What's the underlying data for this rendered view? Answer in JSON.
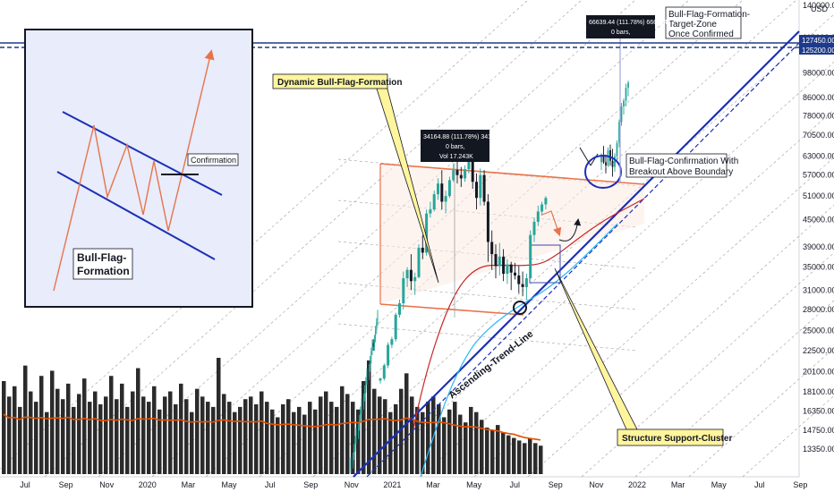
{
  "chart_data": {
    "type": "candlestick",
    "title": "",
    "currency": "USD",
    "y_scale": "log",
    "ylim": [
      12500,
      142000
    ],
    "y_ticks": [
      160000,
      140000,
      118000,
      98000,
      86000,
      78000,
      70500,
      63000,
      57000,
      51000,
      45000,
      39000,
      35000,
      31000,
      28000,
      25000,
      22500,
      20100,
      18100,
      16350,
      14750,
      13350
    ],
    "x_ticks": [
      "Jul",
      "Sep",
      "Nov",
      "2020",
      "Mar",
      "May",
      "Jul",
      "Sep",
      "Nov",
      "2021",
      "Mar",
      "May",
      "Jul",
      "Sep",
      "Nov",
      "2022",
      "Mar",
      "May",
      "Jul",
      "Sep"
    ],
    "highlight_prices": [
      "127450.00",
      "125200.00"
    ],
    "annotations": {
      "dynamic_flag": "Dynamic Bull-Flag-Formation",
      "structure_support": "Structure Support-Cluster",
      "ascending_trend": "Ascending-Trend-Line",
      "confirmation_line1": "Bull-Flag-Confirmation With",
      "confirmation_line2": "Breakout Above Boundary",
      "target_line1": "Bull-Flag-Formation-",
      "target_line2": "Target-Zone",
      "target_line3": "Once Confirmed",
      "tooltip1_line1": "34164.88 (111.78%) 3416488",
      "tooltip1_line2": "0 bars,",
      "tooltip1_line3": "Vol 17.243K",
      "tooltip2_line1": "66639.44 (111.78%) 6663944",
      "tooltip2_line2": "0 bars,"
    },
    "inset": {
      "title_line1": "Bull-Flag-",
      "title_line2": "Formation",
      "confirmation": "Confirmation"
    },
    "colors": {
      "up": "#26a69a",
      "down": "#131722",
      "trend": "#1c2fb5",
      "flag_box": "#e8734a",
      "ma_red": "#c62828",
      "ma_blue": "#29b6f6",
      "volume_ma": "#e65100",
      "callout_fill": "#fff59d",
      "inset_bg": "#e8ecfb",
      "highlight": "#1e3a8a"
    },
    "ohlc": [
      [
        19200,
        19500,
        18900,
        19400
      ],
      [
        19400,
        21000,
        19200,
        20800
      ],
      [
        20800,
        23500,
        20500,
        23200
      ],
      [
        23200,
        24200,
        22800,
        23900
      ],
      [
        23900,
        27500,
        23600,
        27200
      ],
      [
        27200,
        29500,
        26800,
        28900
      ],
      [
        28900,
        34200,
        28000,
        33000
      ],
      [
        33000,
        35000,
        31500,
        34500
      ],
      [
        34500,
        37500,
        31000,
        32500
      ],
      [
        32500,
        34000,
        30200,
        33200
      ],
      [
        33200,
        39500,
        33000,
        38800
      ],
      [
        38800,
        41500,
        36500,
        37800
      ],
      [
        37800,
        47500,
        37200,
        46500
      ],
      [
        46500,
        49500,
        45500,
        47500
      ],
      [
        47500,
        52500,
        47000,
        51500
      ],
      [
        51500,
        56000,
        50000,
        54500
      ],
      [
        54500,
        58500,
        47500,
        49500
      ],
      [
        49500,
        52500,
        46500,
        51000
      ],
      [
        51000,
        56500,
        50500,
        55500
      ],
      [
        55500,
        60500,
        55000,
        58500
      ],
      [
        58500,
        61500,
        54500,
        57000
      ],
      [
        57000,
        59500,
        53500,
        56000
      ],
      [
        56000,
        60000,
        55000,
        58800
      ],
      [
        58800,
        64500,
        57500,
        61500
      ],
      [
        61500,
        63500,
        53000,
        55000
      ],
      [
        55000,
        57500,
        47500,
        50500
      ],
      [
        50500,
        59000,
        48500,
        57000
      ],
      [
        57000,
        58500,
        48500,
        49500
      ],
      [
        49500,
        51500,
        36000,
        40000
      ],
      [
        40000,
        42500,
        34500,
        37500
      ],
      [
        37500,
        39500,
        33000,
        35200
      ],
      [
        35200,
        39800,
        33500,
        37000
      ],
      [
        37000,
        38500,
        32500,
        33800
      ],
      [
        33800,
        36500,
        32000,
        35500
      ],
      [
        35500,
        36000,
        31000,
        34000
      ],
      [
        34000,
        35800,
        32800,
        33500
      ],
      [
        33500,
        35200,
        30500,
        32000
      ],
      [
        32000,
        34200,
        30000,
        31500
      ],
      [
        31500,
        33800,
        29500,
        33000
      ],
      [
        33000,
        42500,
        33000,
        41500
      ],
      [
        41500,
        45500,
        40000,
        44500
      ],
      [
        44500,
        48500,
        43500,
        47000
      ],
      [
        47000,
        49500,
        46000,
        48800
      ],
      [
        48800,
        51000,
        47500,
        50500
      ]
    ],
    "ohlc_recent": [
      [
        61000,
        64000,
        58500,
        63500
      ],
      [
        63500,
        66500,
        60500,
        61000
      ],
      [
        61000,
        63500,
        57500,
        60000
      ],
      [
        60000,
        66000,
        59500,
        65000
      ],
      [
        65000,
        67000,
        60000,
        61500
      ],
      [
        61500,
        65500,
        56500,
        59500
      ],
      [
        59500,
        64000,
        58000,
        63000
      ],
      [
        63000,
        68500,
        61500,
        67500
      ],
      [
        67500,
        76500,
        66000,
        75500
      ],
      [
        75500,
        83500,
        74000,
        82000
      ],
      [
        82000,
        85500,
        78500,
        84500
      ],
      [
        84500,
        92500,
        82000,
        90500
      ],
      [
        90500,
        94000,
        86500,
        93000
      ]
    ],
    "volume": [
      180,
      150,
      170,
      130,
      210,
      160,
      140,
      190,
      120,
      200,
      165,
      145,
      175,
      130,
      155,
      185,
      140,
      160,
      135,
      150,
      190,
      145,
      175,
      130,
      160,
      205,
      150,
      140,
      170,
      125,
      150,
      160,
      135,
      175,
      145,
      120,
      165,
      150,
      140,
      130,
      225,
      155,
      140,
      120,
      130,
      145,
      150,
      135,
      160,
      140,
      125,
      110,
      135,
      145,
      120,
      130,
      115,
      140,
      125,
      150,
      160,
      140,
      130,
      170,
      155,
      140,
      125,
      180,
      220,
      165,
      150,
      145,
      120,
      135,
      165,
      195,
      150,
      130,
      120,
      140,
      150,
      135,
      110,
      125,
      140,
      115,
      100,
      130,
      120,
      105,
      90,
      85,
      95,
      80,
      75,
      70,
      65,
      60,
      70,
      60,
      55
    ]
  }
}
